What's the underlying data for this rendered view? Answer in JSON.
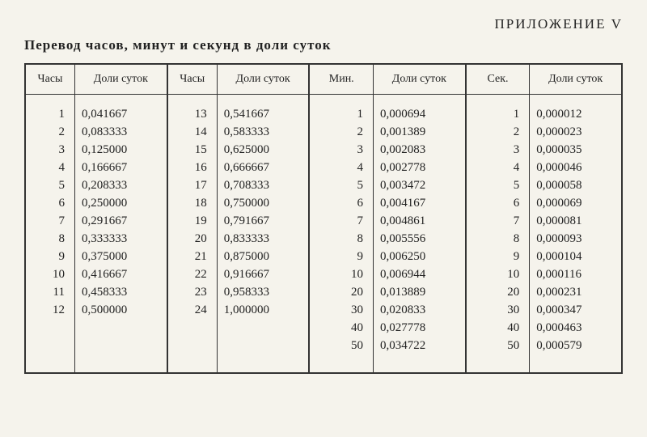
{
  "appendix_label": "ПРИЛОЖЕНИЕ V",
  "title": "Перевод часов, минут и секунд в доли суток",
  "headers": [
    "Часы",
    "Доли суток",
    "Часы",
    "Доли суток",
    "Мин.",
    "Доли суток",
    "Сек.",
    "Доли суток"
  ],
  "columns": {
    "hours_a_n": [
      "1",
      "2",
      "3",
      "4",
      "5",
      "6",
      "7",
      "8",
      "9",
      "10",
      "11",
      "12",
      "",
      "",
      ""
    ],
    "hours_a_f": [
      "0,041667",
      "0,083333",
      "0,125000",
      "0,166667",
      "0,208333",
      "0,250000",
      "0,291667",
      "0,333333",
      "0,375000",
      "0,416667",
      "0,458333",
      "0,500000",
      "",
      "",
      ""
    ],
    "hours_b_n": [
      "13",
      "14",
      "15",
      "16",
      "17",
      "18",
      "19",
      "20",
      "21",
      "22",
      "23",
      "24",
      "",
      "",
      ""
    ],
    "hours_b_f": [
      "0,541667",
      "0,583333",
      "0,625000",
      "0,666667",
      "0,708333",
      "0,750000",
      "0,791667",
      "0,833333",
      "0,875000",
      "0,916667",
      "0,958333",
      "1,000000",
      "",
      "",
      ""
    ],
    "min_n": [
      "1",
      "2",
      "3",
      "4",
      "5",
      "6",
      "7",
      "8",
      "9",
      "10",
      "20",
      "30",
      "40",
      "50",
      ""
    ],
    "min_f": [
      "0,000694",
      "0,001389",
      "0,002083",
      "0,002778",
      "0,003472",
      "0,004167",
      "0,004861",
      "0,005556",
      "0,006250",
      "0,006944",
      "0,013889",
      "0,020833",
      "0,027778",
      "0,034722",
      ""
    ],
    "sec_n": [
      "1",
      "2",
      "3",
      "4",
      "5",
      "6",
      "7",
      "8",
      "9",
      "10",
      "20",
      "30",
      "40",
      "50",
      ""
    ],
    "sec_f": [
      "0,000012",
      "0,000023",
      "0,000035",
      "0,000046",
      "0,000058",
      "0,000069",
      "0,000081",
      "0,000093",
      "0,000104",
      "0,000116",
      "0,000231",
      "0,000347",
      "0,000463",
      "0,000579",
      ""
    ]
  },
  "col_widths": [
    "7%",
    "13%",
    "7%",
    "13%",
    "9%",
    "13%",
    "9%",
    "13%"
  ]
}
